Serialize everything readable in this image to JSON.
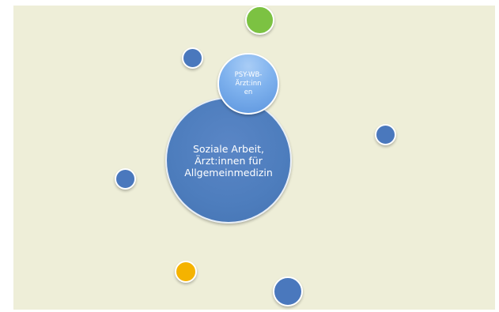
{
  "diagram": {
    "main_circle": {
      "label": "Soziale Arbeit,\nÄrzt:innen für\nAllgemeinmedizin",
      "color": "#4d7dbd"
    },
    "secondary_circle": {
      "label": "PSY-WB-\nÄrzt:inn\nen",
      "color": "#6fa6e8"
    },
    "background_color": "#eeeed8",
    "accent_colors": {
      "green": "#7cc242",
      "yellow": "#f5b300",
      "blue": "#4a78bd"
    }
  }
}
